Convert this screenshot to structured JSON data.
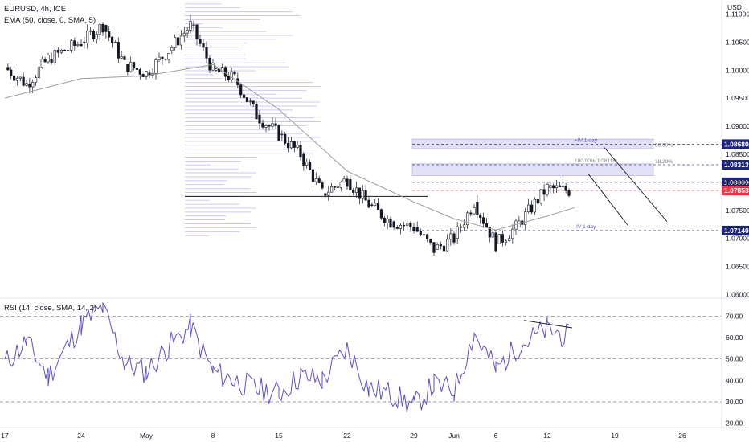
{
  "chart_data": [
    {
      "type": "candlestick",
      "symbol": "EURUSD",
      "timeframe": "4h",
      "exchange": "ICE",
      "header": "EURUSD, 4h, ICE",
      "indicator": "EMA (50, close, 0, SMA, 5)",
      "currency_label": "USD",
      "ylim": [
        1.0595,
        1.1125
      ],
      "ticks": [
        "1.11000",
        "1.10500",
        "1.10000",
        "1.09500",
        "1.09000",
        "1.08500",
        "1.08000",
        "1.07500",
        "1.07000",
        "1.06500",
        "1.06000"
      ],
      "x_ticks": [
        "17",
        "24",
        "May",
        "8",
        "15",
        "22",
        "29",
        "Jun",
        "6",
        "12",
        "19",
        "26"
      ],
      "price_path": [
        [
          "17",
          1.1005
        ],
        [
          "19",
          1.0975
        ],
        [
          "21",
          1.102
        ],
        [
          "24",
          1.105
        ],
        [
          "26",
          1.108
        ],
        [
          "28",
          1.101
        ],
        [
          "May",
          1.0995
        ],
        [
          "3",
          1.1035
        ],
        [
          "5",
          1.108
        ],
        [
          "8",
          1.1
        ],
        [
          "10",
          1.0985
        ],
        [
          "12",
          1.092
        ],
        [
          "15",
          1.0885
        ],
        [
          "17",
          1.085
        ],
        [
          "19",
          1.078
        ],
        [
          "22",
          1.0805
        ],
        [
          "24",
          1.076
        ],
        [
          "26",
          1.073
        ],
        [
          "29",
          1.072
        ],
        [
          "31",
          1.068
        ],
        [
          "Jun",
          1.07
        ],
        [
          "2",
          1.0765
        ],
        [
          "6",
          1.069
        ],
        [
          "8",
          1.072
        ],
        [
          "12",
          1.079
        ],
        [
          "14",
          1.0785
        ]
      ],
      "ema_path": [
        [
          "17",
          1.095
        ],
        [
          "24",
          1.0985
        ],
        [
          "May",
          1.099
        ],
        [
          "8",
          1.101
        ],
        [
          "15",
          1.093
        ],
        [
          "22",
          1.082
        ],
        [
          "29",
          1.0765
        ],
        [
          "Jun",
          1.0735
        ],
        [
          "6",
          1.0715
        ],
        [
          "12",
          1.074
        ],
        [
          "14",
          1.0755
        ]
      ],
      "levels": [
        {
          "label": "1.08680",
          "value": 1.0868,
          "color": "#1a237e",
          "annotation": "+IV 1-day",
          "sub": "50.00%"
        },
        {
          "label": "1.08313",
          "value": 1.08313,
          "color": "#1a237e",
          "annotation": "100.00%(1.08118)",
          "sub": "38.20%"
        },
        {
          "label": "1.08000",
          "value": 1.08,
          "color": "#1a237e"
        },
        {
          "label": "1.07853",
          "value": 1.07853,
          "color": "#f23645"
        },
        {
          "label": "1.07140",
          "value": 1.0714,
          "color": "#1a237e",
          "annotation": "-IV 1-day"
        }
      ],
      "horizontal_line": 1.0775
    },
    {
      "type": "line",
      "indicator": "RSI (14, close, SMA, 14, 2)",
      "ylim": [
        18,
        78
      ],
      "ticks": [
        "70.00",
        "60.00",
        "50.00",
        "40.00",
        "30.00",
        "20.00"
      ],
      "guide_levels": [
        70,
        50,
        30
      ],
      "rsi_path": [
        [
          "17",
          48
        ],
        [
          "19",
          58
        ],
        [
          "21",
          42
        ],
        [
          "24",
          66
        ],
        [
          "26",
          74
        ],
        [
          "28",
          48
        ],
        [
          "May",
          44
        ],
        [
          "3",
          56
        ],
        [
          "5",
          65
        ],
        [
          "8",
          44
        ],
        [
          "10",
          40
        ],
        [
          "12",
          36
        ],
        [
          "15",
          34
        ],
        [
          "17",
          42
        ],
        [
          "19",
          40
        ],
        [
          "22",
          55
        ],
        [
          "24",
          36
        ],
        [
          "26",
          34
        ],
        [
          "29",
          28
        ],
        [
          "31",
          38
        ],
        [
          "Jun",
          35
        ],
        [
          "2",
          62
        ],
        [
          "6",
          45
        ],
        [
          "8",
          55
        ],
        [
          "12",
          64
        ],
        [
          "14",
          60
        ]
      ],
      "divergence": [
        [
          64
        ],
        [
          62
        ]
      ]
    }
  ],
  "colors": {
    "up": "#131722",
    "down": "#131722",
    "ema": "#9e9e9e",
    "rsi": "#5b4fd1",
    "volume_profile": "#b7b0f0",
    "zone": "#e1e0f7",
    "last_price": "#f23645",
    "level": "#1a237e"
  }
}
